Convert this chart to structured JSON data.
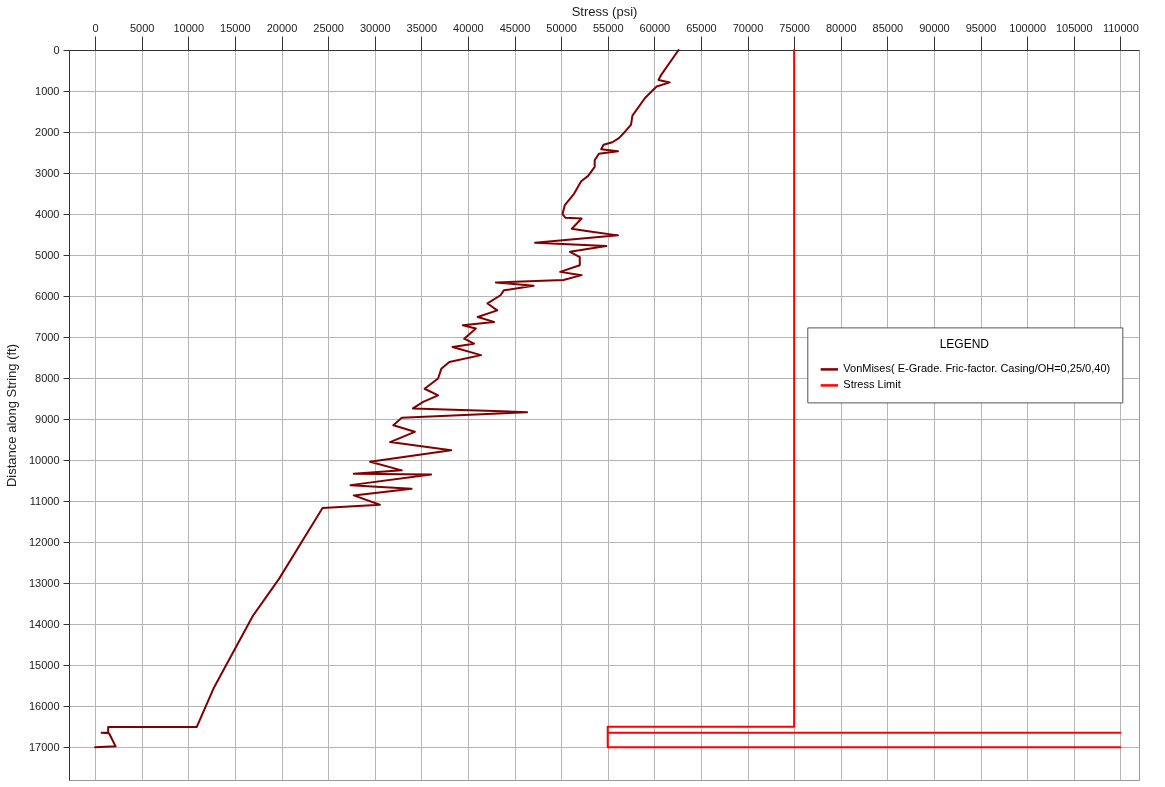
{
  "chart_data": {
    "type": "line",
    "xlabel": "Stress (psi)",
    "ylabel": "Distance along String (ft)",
    "legend_title": "LEGEND",
    "xlim": [
      -2800,
      112000
    ],
    "xticks": [
      0,
      5000,
      10000,
      15000,
      20000,
      25000,
      30000,
      35000,
      40000,
      45000,
      50000,
      55000,
      60000,
      65000,
      70000,
      75000,
      80000,
      85000,
      90000,
      95000,
      100000,
      105000,
      110000
    ],
    "ylim": [
      17800,
      0
    ],
    "yticks": [
      0,
      1000,
      2000,
      3000,
      4000,
      5000,
      6000,
      7000,
      8000,
      9000,
      10000,
      11000,
      12000,
      13000,
      14000,
      15000,
      16000,
      17000
    ],
    "grid": true,
    "legend": "right",
    "line_style": "solid",
    "series": [
      {
        "name": "VonMises( E-Grade. Fric-factor. Casing/OH=0,25/0,40)",
        "color": "#800000",
        "x": [
          62600,
          60700,
          60450,
          61650,
          60250,
          59750,
          59000,
          57650,
          57500,
          56900,
          56200,
          55500,
          54550,
          54300,
          56100,
          54050,
          53600,
          53600,
          52900,
          52150,
          51400,
          50400,
          50150,
          50450,
          52200,
          51150,
          52900,
          56100,
          47200,
          54850,
          50950,
          52000,
          52000,
          49900,
          52200,
          50250,
          43000,
          47050,
          43850,
          43500,
          42100,
          43150,
          41050,
          42800,
          39450,
          40850,
          39600,
          40650,
          38350,
          41400,
          38000,
          37150,
          36800,
          35350,
          36800,
          35200,
          34100,
          46350,
          32900,
          32000,
          34300,
          31650,
          38200,
          29500,
          32900,
          27750,
          36050,
          27400,
          33950,
          27750,
          30550,
          24400,
          19750,
          16950,
          12700,
          10900,
          1400,
          1400,
          700,
          1500,
          2200,
          0
        ],
        "values": [
          0,
          620,
          730,
          790,
          890,
          1000,
          1170,
          1600,
          1820,
          1980,
          2150,
          2250,
          2310,
          2420,
          2470,
          2530,
          2690,
          2850,
          3070,
          3200,
          3500,
          3780,
          4000,
          4090,
          4110,
          4360,
          4420,
          4520,
          4700,
          4780,
          4920,
          5050,
          5250,
          5410,
          5490,
          5610,
          5670,
          5750,
          5860,
          5980,
          6180,
          6350,
          6510,
          6630,
          6710,
          6790,
          7040,
          7160,
          7240,
          7440,
          7610,
          7770,
          8010,
          8260,
          8420,
          8580,
          8740,
          8830,
          8970,
          9150,
          9310,
          9560,
          9760,
          10040,
          10250,
          10330,
          10350,
          10610,
          10700,
          10860,
          11090,
          11170,
          12890,
          13790,
          15570,
          16510,
          16510,
          16640,
          16650,
          16660,
          16980,
          17000
        ]
      },
      {
        "name": "Stress Limit",
        "color": "#ff0000",
        "x": [
          75000,
          75000,
          55000,
          55000,
          110000,
          55000,
          55000,
          110000
        ],
        "values": [
          0,
          16500,
          16500,
          16650,
          16650,
          16650,
          17000,
          17000
        ]
      }
    ]
  }
}
